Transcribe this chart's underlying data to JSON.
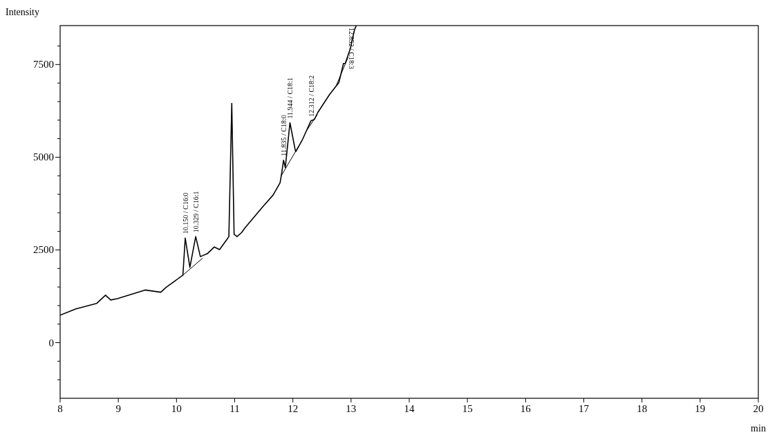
{
  "chart_data": {
    "type": "line",
    "xlabel": "min",
    "ylabel": "Intensity",
    "xlim": [
      8,
      20
    ],
    "ylim": [
      -1500,
      8550
    ],
    "xticks": [
      8,
      9,
      10,
      11,
      12,
      13,
      14,
      15,
      16,
      17,
      18,
      19,
      20
    ],
    "yticks": [
      {
        "value": -1000,
        "label": null
      },
      {
        "value": -500,
        "label": null
      },
      0,
      {
        "value": 500,
        "label": null
      },
      {
        "value": 1000,
        "label": null
      },
      {
        "value": 1500,
        "label": null
      },
      {
        "value": 2000,
        "label": null
      },
      2500,
      {
        "value": 3000,
        "label": null
      },
      {
        "value": 3500,
        "label": null
      },
      {
        "value": 4000,
        "label": null
      },
      {
        "value": 4500,
        "label": null
      },
      5000,
      {
        "value": 5500,
        "label": null
      },
      {
        "value": 6000,
        "label": null
      },
      {
        "value": 6500,
        "label": null
      },
      {
        "value": 7000,
        "label": null
      },
      7500,
      {
        "value": 8000,
        "label": null
      }
    ],
    "grid": false,
    "line_style": "solid",
    "series": [
      {
        "color": "#000000",
        "x": [
          8.0,
          8.27,
          8.63,
          8.78,
          8.87,
          8.99,
          9.22,
          9.46,
          9.73,
          9.82,
          10.11,
          10.15,
          10.23,
          10.33,
          10.41,
          10.53,
          10.65,
          10.74,
          10.86,
          10.9,
          10.95,
          10.99,
          11.04,
          11.12,
          11.18,
          11.48,
          11.66,
          11.78,
          11.81,
          11.84,
          11.87,
          11.95,
          12.04,
          12.05,
          12.16,
          12.31,
          12.37,
          12.43,
          12.63,
          12.79,
          12.87,
          12.9,
          12.99,
          13.06,
          13.09
        ],
        "values": [
          740,
          910,
          1060,
          1280,
          1150,
          1190,
          1300,
          1420,
          1360,
          1490,
          1820,
          2820,
          2030,
          2860,
          2320,
          2400,
          2580,
          2510,
          2770,
          2860,
          6450,
          2920,
          2860,
          2970,
          3100,
          3660,
          3980,
          4310,
          4590,
          4920,
          4720,
          5930,
          5200,
          5150,
          5460,
          5980,
          6020,
          6210,
          6690,
          7010,
          7530,
          7530,
          7940,
          8440,
          8550
        ]
      },
      {
        "color": "#000000",
        "x": [
          10.11,
          10.45,
          10.46,
          11.8,
          12.1,
          12.11,
          12.25,
          12.42,
          12.43,
          12.75,
          12.95
        ],
        "values": [
          1820,
          2280,
          null,
          4500,
          5300,
          null,
          5750,
          6150,
          null,
          6950,
          7700
        ]
      }
    ],
    "annotations": [
      {
        "text": "10.150 / C16:0",
        "x": 10.15,
        "y": 2820
      },
      {
        "text": "10.329 / C16:1",
        "x": 10.33,
        "y": 2860
      },
      {
        "text": "11.835 / C18:0",
        "x": 11.84,
        "y": 4920
      },
      {
        "text": "11.944 / C18:1",
        "x": 11.95,
        "y": 5930
      },
      {
        "text": "12.312 / C18:2",
        "x": 12.31,
        "y": 5980
      },
      {
        "text": "12.852 / C18:3",
        "x": 12.87,
        "y": 7530
      }
    ]
  }
}
